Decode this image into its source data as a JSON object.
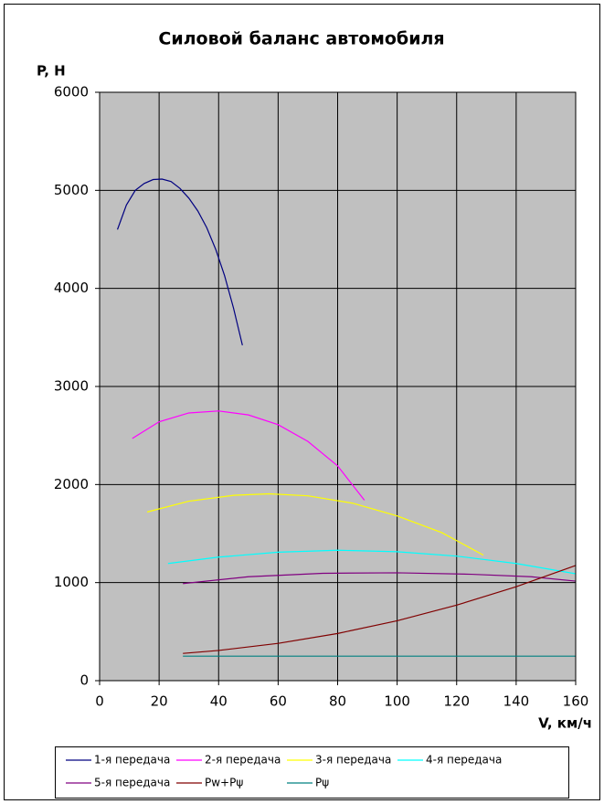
{
  "chart_data": {
    "type": "line",
    "title": "Силовой баланс автомобиля",
    "y_label": "P, H",
    "x_label": "V, км/ч",
    "xlim": [
      0,
      160
    ],
    "xticks": [
      0,
      20,
      40,
      60,
      80,
      100,
      120,
      140,
      160
    ],
    "ylim": [
      0,
      6000
    ],
    "yticks": [
      0,
      1000,
      2000,
      3000,
      4000,
      5000,
      6000
    ],
    "grid": true,
    "legend": "bottom",
    "background": "#c0c0c0",
    "series": [
      {
        "name": "1-я передача",
        "color": "#000080",
        "x": [
          6,
          9,
          12,
          15,
          18,
          21,
          24,
          27,
          30,
          33,
          36,
          39,
          42,
          45,
          48
        ],
        "values": [
          4600,
          4850,
          5000,
          5070,
          5110,
          5115,
          5090,
          5020,
          4920,
          4790,
          4620,
          4400,
          4130,
          3800,
          3420
        ]
      },
      {
        "name": "2-я передача",
        "color": "#ff00ff",
        "x": [
          11,
          20,
          30,
          40,
          50,
          60,
          70,
          80,
          89
        ],
        "values": [
          2470,
          2640,
          2730,
          2750,
          2710,
          2610,
          2440,
          2190,
          1840
        ]
      },
      {
        "name": "3-я передача",
        "color": "#ffff00",
        "x": [
          16,
          30,
          45,
          57,
          70,
          85,
          100,
          115,
          129
        ],
        "values": [
          1720,
          1830,
          1890,
          1905,
          1885,
          1810,
          1680,
          1510,
          1280
        ]
      },
      {
        "name": "4-я передача",
        "color": "#00ffff",
        "x": [
          23,
          40,
          60,
          80,
          100,
          120,
          140,
          160
        ],
        "values": [
          1195,
          1260,
          1310,
          1330,
          1315,
          1270,
          1195,
          1090
        ]
      },
      {
        "name": "5-я передача",
        "color": "#800080",
        "x": [
          28,
          50,
          75,
          100,
          125,
          145,
          160
        ],
        "values": [
          990,
          1060,
          1095,
          1100,
          1085,
          1060,
          1015
        ]
      },
      {
        "name": "Pw+Pψ",
        "color": "#800000",
        "x": [
          28,
          40,
          60,
          80,
          100,
          120,
          140,
          160
        ],
        "values": [
          278,
          308,
          380,
          481,
          611,
          770,
          958,
          1175
        ]
      },
      {
        "name": "Pψ",
        "color": "#008080",
        "x": [
          28,
          160
        ],
        "values": [
          250,
          250
        ]
      }
    ]
  }
}
